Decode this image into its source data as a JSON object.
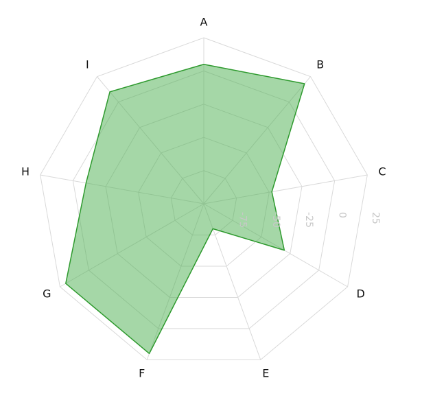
{
  "chart_data": {
    "type": "radar",
    "categories": [
      "A",
      "B",
      "C",
      "D",
      "E",
      "F",
      "G",
      "H",
      "I"
    ],
    "radial_ticks": [
      -100,
      -75,
      -50,
      -25,
      0,
      25
    ],
    "radial_tick_labels": [
      "-75",
      "-50",
      "-25",
      "0",
      "25"
    ],
    "rlim": [
      -100,
      25
    ],
    "series": [
      {
        "values": [
          5,
          18,
          -48,
          -30,
          -80,
          20,
          20,
          -10,
          10
        ],
        "color": "#2e9a2e",
        "fill": "#4caf50"
      }
    ],
    "grid": true,
    "legend": "none"
  }
}
